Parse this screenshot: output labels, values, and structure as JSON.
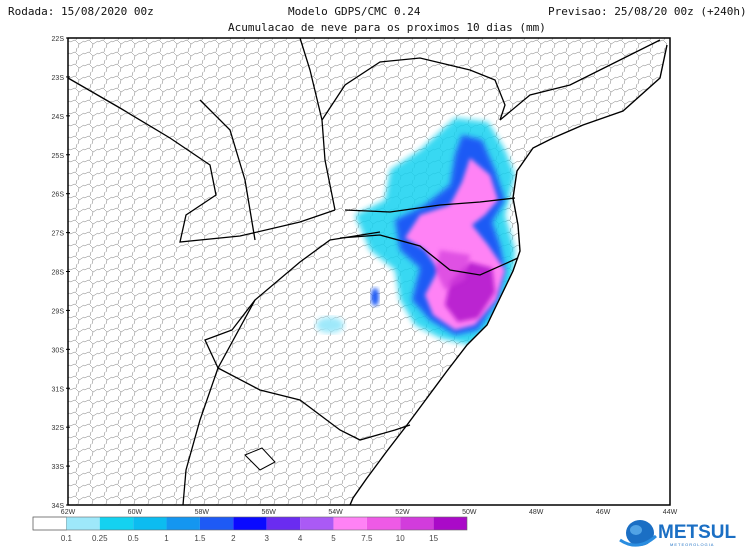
{
  "header": {
    "run": "Rodada: 15/08/2020 00z",
    "model": "Modelo GDPS/CMC 0.24",
    "forecast": "Previsao: 25/08/20 00z (+240h)",
    "subtitle": "Acumulacao de neve para os proximos 10 dias (mm)"
  },
  "axes": {
    "lat_labels": [
      "22S",
      "23S",
      "24S",
      "25S",
      "26S",
      "27S",
      "28S",
      "29S",
      "30S",
      "31S",
      "32S",
      "33S",
      "34S"
    ],
    "lon_labels": [
      "62W",
      "60W",
      "58W",
      "56W",
      "54W",
      "52W",
      "50W",
      "48W",
      "46W",
      "44W"
    ]
  },
  "colorbar": {
    "labels": [
      "0.1",
      "0.25",
      "0.5",
      "1",
      "1.5",
      "2",
      "3",
      "4",
      "5",
      "7.5",
      "10",
      "15"
    ],
    "colors": [
      "#ffffff",
      "#9ee8fa",
      "#14d2f0",
      "#0cbcf0",
      "#1496f0",
      "#1e5af5",
      "#0a0aff",
      "#6a2cf0",
      "#aa5af5",
      "#ff82f5",
      "#ee5ae6",
      "#d23cdc",
      "#aa0ac8"
    ]
  },
  "logo": {
    "name": "METSUL",
    "tagline": "METEOROLOGIA"
  }
}
